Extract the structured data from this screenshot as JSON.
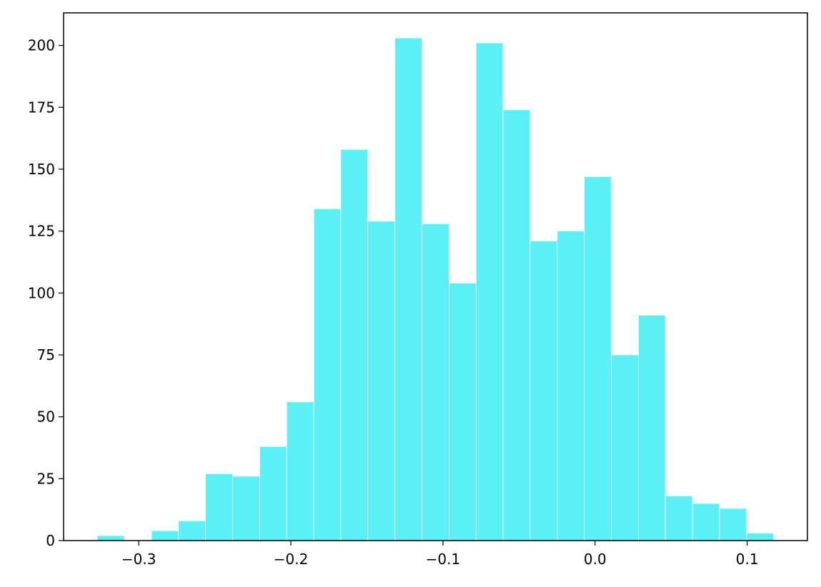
{
  "chart_data": {
    "type": "histogram",
    "bins": [
      -0.3272,
      -0.3094,
      -0.2916,
      -0.2739,
      -0.2561,
      -0.2383,
      -0.2205,
      -0.2027,
      -0.1849,
      -0.1672,
      -0.1494,
      -0.1316,
      -0.1138,
      -0.096,
      -0.0782,
      -0.0605,
      -0.0427,
      -0.0249,
      -0.0071,
      0.0107,
      0.0285,
      0.0462,
      0.064,
      0.0818,
      0.0996,
      0.1174
    ],
    "values": [
      2,
      0,
      4,
      8,
      27,
      26,
      38,
      56,
      134,
      158,
      129,
      203,
      128,
      104,
      201,
      174,
      121,
      125,
      147,
      75,
      91,
      18,
      15,
      13,
      3
    ],
    "color": "#5bf0f5",
    "xlim": [
      -0.3494,
      0.1396
    ],
    "xticks": [
      {
        "value": -0.3,
        "label": "−0.3"
      },
      {
        "value": -0.2,
        "label": "−0.2"
      },
      {
        "value": -0.1,
        "label": "−0.1"
      },
      {
        "value": 0.0,
        "label": "0.0"
      },
      0.1
    ],
    "ylim": [
      0,
      213.15
    ],
    "yticks": [
      0,
      25,
      50,
      75,
      100,
      125,
      150,
      175,
      200
    ]
  }
}
